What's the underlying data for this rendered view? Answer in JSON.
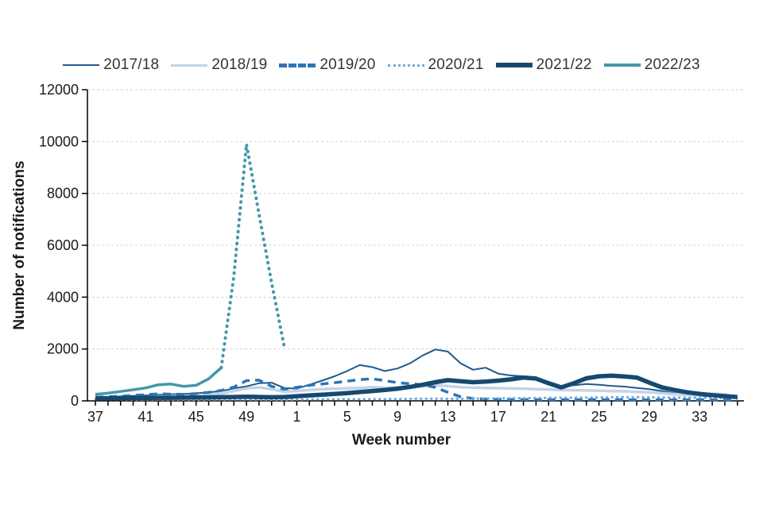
{
  "page": {
    "background": "#ffffff"
  },
  "legend": {
    "position": "top",
    "items": [
      {
        "label": "2017/18",
        "color": "#1f5b8e",
        "style": "solid",
        "weight": 2.5
      },
      {
        "label": "2018/19",
        "color": "#c3d3e8",
        "style": "solid",
        "weight": 3.5
      },
      {
        "label": "2019/20",
        "color": "#2e75b6",
        "style": "dashed",
        "weight": 5
      },
      {
        "label": "2020/21",
        "color": "#74a9d8",
        "style": "dotted",
        "weight": 3
      },
      {
        "label": "2021/22",
        "color": "#17496f",
        "style": "solid",
        "weight": 6
      },
      {
        "label": "2022/23",
        "color": "#4497ab",
        "style": "solid",
        "weight": 4
      }
    ]
  },
  "chart_data": {
    "type": "line",
    "title": "",
    "xlabel": "Week number",
    "ylabel": "Number of notifications",
    "ylim": [
      0,
      12000
    ],
    "yticks": [
      0,
      2000,
      4000,
      6000,
      8000,
      10000,
      12000
    ],
    "grid": "horizontal-dashed",
    "grid_color": "#d3d3d3",
    "legend_position": "top",
    "x_weeks": [
      37,
      38,
      39,
      40,
      41,
      42,
      43,
      44,
      45,
      46,
      47,
      48,
      49,
      50,
      51,
      52,
      1,
      2,
      3,
      4,
      5,
      6,
      7,
      8,
      9,
      10,
      11,
      12,
      13,
      14,
      15,
      16,
      17,
      18,
      19,
      20,
      21,
      22,
      23,
      24,
      25,
      26,
      27,
      28,
      29,
      30,
      31,
      32,
      33,
      34,
      35,
      36
    ],
    "x_tick_label_indices": [
      0,
      4,
      8,
      12,
      16,
      20,
      24,
      28,
      32,
      36,
      40,
      44,
      48
    ],
    "series": [
      {
        "name": "2017/18",
        "color": "#1f5b8e",
        "style": "solid",
        "width": 2,
        "values": [
          130,
          150,
          170,
          190,
          210,
          240,
          250,
          270,
          290,
          330,
          380,
          480,
          560,
          680,
          700,
          500,
          470,
          620,
          780,
          950,
          1150,
          1380,
          1300,
          1150,
          1250,
          1450,
          1750,
          1980,
          1900,
          1450,
          1200,
          1280,
          1050,
          980,
          950,
          850,
          700,
          560,
          600,
          650,
          620,
          580,
          550,
          500,
          450,
          380,
          300,
          250,
          200,
          170,
          140,
          120
        ]
      },
      {
        "name": "2018/19",
        "color": "#c3d3e8",
        "style": "solid",
        "width": 3.5,
        "values": [
          90,
          100,
          110,
          130,
          150,
          170,
          180,
          190,
          200,
          230,
          280,
          380,
          480,
          520,
          450,
          350,
          380,
          420,
          450,
          470,
          480,
          500,
          530,
          500,
          520,
          540,
          560,
          600,
          570,
          530,
          510,
          500,
          490,
          480,
          470,
          450,
          440,
          420,
          410,
          400,
          390,
          380,
          370,
          350,
          330,
          300,
          260,
          230,
          210,
          280,
          250,
          130
        ]
      },
      {
        "name": "2019/20",
        "color": "#2e75b6",
        "style": "dashed",
        "width": 3.5,
        "values": [
          140,
          160,
          180,
          210,
          240,
          270,
          260,
          250,
          280,
          330,
          400,
          530,
          780,
          800,
          560,
          450,
          520,
          600,
          650,
          700,
          760,
          820,
          850,
          780,
          700,
          660,
          620,
          520,
          330,
          160,
          90,
          70,
          60,
          55,
          50,
          50,
          45,
          45,
          40,
          45,
          50,
          45,
          45,
          40,
          45,
          40,
          40,
          40,
          40,
          40,
          40,
          40
        ]
      },
      {
        "name": "2020/21",
        "color": "#74a9d8",
        "style": "dotted",
        "width": 3,
        "values": [
          60,
          55,
          55,
          50,
          50,
          50,
          45,
          45,
          45,
          50,
          50,
          55,
          55,
          50,
          45,
          45,
          50,
          55,
          60,
          60,
          65,
          65,
          70,
          70,
          75,
          80,
          85,
          85,
          80,
          80,
          85,
          90,
          95,
          100,
          105,
          110,
          115,
          120,
          125,
          130,
          135,
          140,
          140,
          145,
          140,
          135,
          130,
          125,
          120,
          115,
          110,
          140
        ]
      },
      {
        "name": "2021/22",
        "color": "#17496f",
        "style": "solid",
        "width": 5.5,
        "values": [
          90,
          100,
          105,
          110,
          115,
          120,
          120,
          125,
          130,
          135,
          140,
          150,
          160,
          150,
          140,
          150,
          180,
          210,
          240,
          270,
          300,
          340,
          380,
          420,
          470,
          540,
          620,
          720,
          800,
          760,
          720,
          740,
          780,
          830,
          900,
          860,
          680,
          520,
          680,
          870,
          950,
          970,
          940,
          900,
          700,
          520,
          420,
          330,
          270,
          220,
          180,
          150
        ]
      },
      {
        "name": "2022/23",
        "color": "#4497ab",
        "style": "solid-then-dotted",
        "width": 3.5,
        "dotted_from_index": 10,
        "values": [
          250,
          300,
          360,
          430,
          500,
          620,
          650,
          560,
          600,
          850,
          1280,
          4800,
          9900,
          7200,
          4550,
          2100,
          null,
          null,
          null,
          null,
          null,
          null,
          null,
          null,
          null,
          null,
          null,
          null,
          null,
          null,
          null,
          null,
          null,
          null,
          null,
          null,
          null,
          null,
          null,
          null,
          null,
          null,
          null,
          null,
          null,
          null,
          null,
          null,
          null,
          null,
          null,
          null
        ]
      }
    ]
  }
}
